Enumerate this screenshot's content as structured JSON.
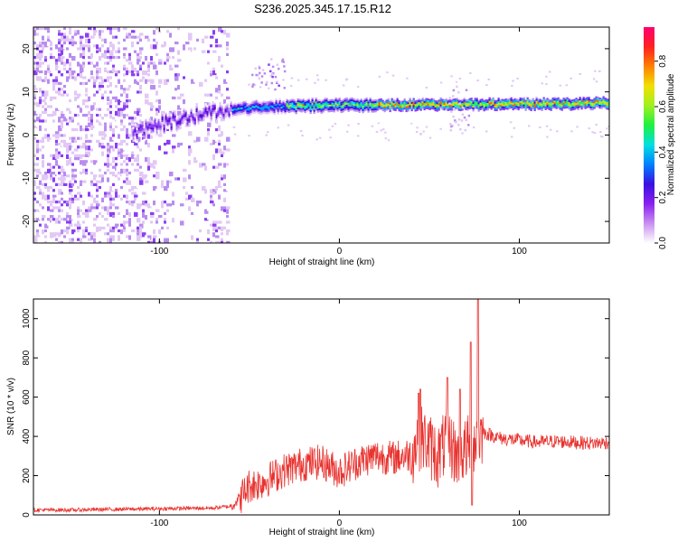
{
  "title": "S236.2025.345.17.15.R12",
  "colors": {
    "snr_line": "#e8322e",
    "spectrogram_palette": [
      "#ffffff",
      "#e2c8f5",
      "#b98cf0",
      "#8a3ff2",
      "#5b0bd8",
      "#2020f0",
      "#00a0ff",
      "#00e8e8",
      "#30f050",
      "#b0f020",
      "#f0d000",
      "#ff6000",
      "#f00030",
      "#ff0080"
    ]
  },
  "chart_data": [
    {
      "type": "heatmap",
      "name": "spectrogram",
      "xlabel": "Height of straight line (km)",
      "ylabel": "Frequency (Hz)",
      "xlim": [
        -170,
        150
      ],
      "ylim": [
        -25,
        25
      ],
      "x_ticks": [
        "-100",
        "0",
        "100"
      ],
      "x_tick_values": [
        -100,
        0,
        100
      ],
      "y_ticks": [
        "20",
        "10",
        "0",
        "-10",
        "-20"
      ],
      "y_tick_values": [
        20,
        10,
        0,
        -10,
        -20
      ],
      "colorbar": {
        "label": "Normalized spectral amplitude",
        "range": [
          0,
          0.95
        ],
        "ticks": [
          "0.0",
          "0.2",
          "0.4",
          "0.6",
          "0.8"
        ],
        "tick_values": [
          0.0,
          0.2,
          0.4,
          0.6,
          0.8
        ]
      },
      "ridge": [
        {
          "x": -115,
          "f": 0.0
        },
        {
          "x": -100,
          "f": 2.5
        },
        {
          "x": -80,
          "f": 4.5
        },
        {
          "x": -60,
          "f": 6.0
        },
        {
          "x": -40,
          "f": 6.5
        },
        {
          "x": -20,
          "f": 6.8
        },
        {
          "x": 0,
          "f": 6.9
        },
        {
          "x": 20,
          "f": 7.0
        },
        {
          "x": 40,
          "f": 7.0
        },
        {
          "x": 60,
          "f": 7.1
        },
        {
          "x": 80,
          "f": 7.1
        },
        {
          "x": 100,
          "f": 7.2
        },
        {
          "x": 125,
          "f": 7.3
        },
        {
          "x": 150,
          "f": 7.4
        }
      ]
    },
    {
      "type": "line",
      "name": "snr",
      "xlabel": "Height of straight line (km)",
      "ylabel": "SNR (10 * v/v)",
      "xlim": [
        -170,
        150
      ],
      "ylim": [
        0,
        1100
      ],
      "x_ticks": [
        "-100",
        "0",
        "100"
      ],
      "x_tick_values": [
        -100,
        0,
        100
      ],
      "y_ticks": [
        "0",
        "200",
        "400",
        "600",
        "800",
        "1000"
      ],
      "y_tick_values": [
        0,
        200,
        400,
        600,
        800,
        1000
      ],
      "x": [
        -170,
        -150,
        -130,
        -110,
        -90,
        -70,
        -60,
        -55,
        -50,
        -45,
        -40,
        -30,
        -20,
        -10,
        0,
        10,
        20,
        30,
        40,
        45,
        50,
        55,
        60,
        65,
        70,
        75,
        80,
        90,
        100,
        110,
        120,
        130,
        140,
        150
      ],
      "values": [
        25,
        25,
        28,
        30,
        33,
        35,
        45,
        90,
        150,
        160,
        180,
        230,
        260,
        270,
        220,
        270,
        300,
        290,
        310,
        400,
        350,
        300,
        390,
        300,
        330,
        380,
        420,
        390,
        380,
        370,
        375,
        370,
        365,
        370
      ],
      "spikes": [
        {
          "x": 44,
          "y": 620
        },
        {
          "x": 45,
          "y": 640
        },
        {
          "x": 60,
          "y": 700
        },
        {
          "x": 67,
          "y": 640
        },
        {
          "x": 73,
          "y": 880
        },
        {
          "x": 73.8,
          "y": 50
        },
        {
          "x": 77,
          "y": 1100
        }
      ]
    }
  ]
}
